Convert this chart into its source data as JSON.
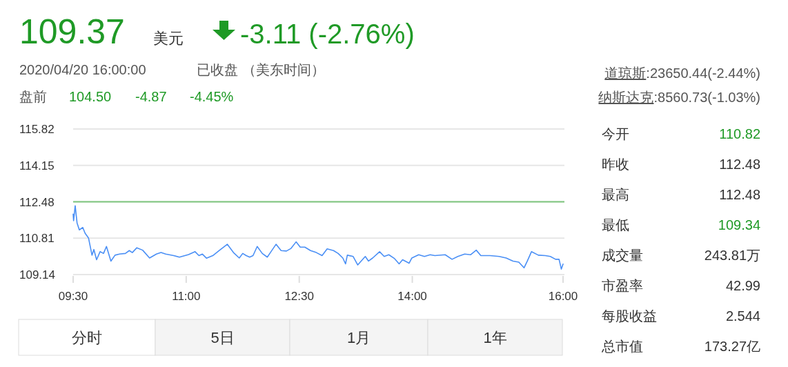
{
  "chart_data": [
    {
      "type": "other",
      "annotations": [
        "109.37",
        "美元",
        "-3.11 (-2.76%)",
        "2020/04/20 16:00:00",
        "已收盘 （美东时间）",
        "盘前",
        "104.50",
        "-4.87",
        "-4.45%",
        "道琼斯:23650.44(-2.44%)",
        "纳斯达克:8560.73(-1.03%)"
      ]
    },
    {
      "type": "line",
      "xlim": [
        9.5,
        16
      ],
      "xticks": [
        {
          "value": 9.5,
          "label": "09:30"
        },
        {
          "value": 11,
          "label": "11:00"
        },
        {
          "value": 12.5,
          "label": "12:30"
        },
        {
          "value": 14,
          "label": "14:00"
        },
        {
          "value": 16,
          "label": "16:00"
        }
      ],
      "ylim": [
        109.14,
        115.82
      ],
      "yticks": [
        109.14,
        110.81,
        112.48,
        114.15,
        115.82
      ],
      "grid": "y",
      "ref_lines": [
        {
          "axis": "y",
          "value": 112.48,
          "color": "#7dc67d"
        }
      ],
      "annotations": [
        "分时",
        "5日",
        "1月",
        "1年"
      ],
      "series": [
        {
          "color": "#4a8ff5",
          "x": [
            9.5,
            9.506,
            9.527,
            9.552,
            9.582,
            9.628,
            9.658,
            9.704,
            9.75,
            9.775,
            9.811,
            9.857,
            9.903,
            9.942,
            10.001,
            10.056,
            10.116,
            10.193,
            10.245,
            10.285,
            10.345,
            10.422,
            10.514,
            10.605,
            10.666,
            10.727,
            10.834,
            10.91,
            11.032,
            11.118,
            11.169,
            11.215,
            11.27,
            11.353,
            11.444,
            11.545,
            11.627,
            11.704,
            11.75,
            11.796,
            11.842,
            11.887,
            11.942,
            12.009,
            12.076,
            12.131,
            12.192,
            12.259,
            12.33,
            12.391,
            12.458,
            12.513,
            12.574,
            12.65,
            12.726,
            12.803,
            12.87,
            12.955,
            13.016,
            13.078,
            13.114,
            13.138,
            13.215,
            13.276,
            13.321,
            13.376,
            13.419,
            13.474,
            13.566,
            13.627,
            13.688,
            13.765,
            13.825,
            13.871,
            13.957,
            13.994,
            14.085,
            14.161,
            14.237,
            14.299,
            14.436,
            14.527,
            14.604,
            14.695,
            14.772,
            14.848,
            14.909,
            15.031,
            15.153,
            15.245,
            15.336,
            15.413,
            15.483,
            15.526,
            15.581,
            15.672,
            15.764,
            15.831,
            15.901,
            15.947,
            15.977,
            16.0
          ],
          "values": [
            111.92,
            111.61,
            112.3,
            111.51,
            111.19,
            111.3,
            111.04,
            110.82,
            110.03,
            110.29,
            109.82,
            110.19,
            110.11,
            110.43,
            109.76,
            110.03,
            110.08,
            110.11,
            110.24,
            110.15,
            110.37,
            110.26,
            109.9,
            110.08,
            110.15,
            110.08,
            110.01,
            109.94,
            110.06,
            110.19,
            110.01,
            110.08,
            109.89,
            110.01,
            110.26,
            110.53,
            110.15,
            109.9,
            110.11,
            110.01,
            109.94,
            110.01,
            110.43,
            110.11,
            109.94,
            110.22,
            110.53,
            110.24,
            110.22,
            110.34,
            110.64,
            110.4,
            110.4,
            110.24,
            110.15,
            110.01,
            110.32,
            110.24,
            110.11,
            109.9,
            109.63,
            110.03,
            109.97,
            109.58,
            109.76,
            109.97,
            109.76,
            109.9,
            110.19,
            109.97,
            110.05,
            109.87,
            109.63,
            109.82,
            109.66,
            109.9,
            110.05,
            109.97,
            110.05,
            110.01,
            110.05,
            109.84,
            109.97,
            110.08,
            110.05,
            110.26,
            110.01,
            110.01,
            109.97,
            109.9,
            109.76,
            109.71,
            109.45,
            109.76,
            110.19,
            110.03,
            110.01,
            109.97,
            109.84,
            109.84,
            109.39,
            109.62
          ]
        }
      ]
    },
    {
      "type": "other",
      "annotations": [
        "今开",
        "110.82",
        "昨收",
        "112.48",
        "最高",
        "112.48",
        "最低",
        "109.34",
        "成交量",
        "243.81万",
        "市盈率",
        "42.99",
        "每股收益",
        "2.544",
        "总市值",
        "173.27亿"
      ]
    }
  ]
}
